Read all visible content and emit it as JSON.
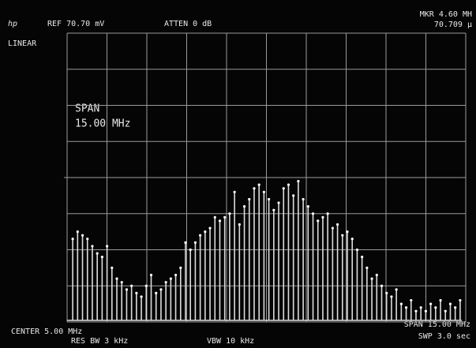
{
  "header": {
    "logo": "hp",
    "ref": "REF 70.70 mV",
    "atten": "ATTEN 0 dB",
    "marker": "MKR 4.60 MH",
    "marker_value": "70.709 µ"
  },
  "scale_mode": "LINEAR",
  "span_note": {
    "label": "SPAN",
    "value": "15.00 MHz"
  },
  "footer": {
    "center": "CENTER 5.00 MHz",
    "res_bw": "RES BW 3 kHz",
    "vbw": "VBW 10 kHz",
    "span": "SPAN 15.00 MHz",
    "sweep": "SWP 3.0 sec"
  },
  "trace": {
    "values": [
      2.3,
      2.5,
      2.4,
      2.3,
      2.1,
      1.9,
      1.8,
      2.1,
      1.5,
      1.2,
      1.1,
      0.9,
      1.0,
      0.8,
      0.7,
      1.0,
      1.3,
      0.8,
      0.9,
      1.1,
      1.2,
      1.3,
      1.5,
      2.2,
      2.0,
      2.2,
      2.4,
      2.5,
      2.6,
      2.9,
      2.8,
      2.9,
      3.0,
      3.6,
      2.7,
      3.2,
      3.4,
      3.7,
      3.8,
      3.6,
      3.4,
      3.1,
      3.3,
      3.7,
      3.8,
      3.5,
      3.9,
      3.4,
      3.2,
      3.0,
      2.8,
      2.9,
      3.0,
      2.6,
      2.7,
      2.4,
      2.5,
      2.3,
      2.0,
      1.8,
      1.5,
      1.2,
      1.3,
      1.0,
      0.8,
      0.7,
      0.9,
      0.5,
      0.4,
      0.6,
      0.3,
      0.4,
      0.3,
      0.5,
      0.4,
      0.6,
      0.3,
      0.5,
      0.4,
      0.6
    ]
  }
}
